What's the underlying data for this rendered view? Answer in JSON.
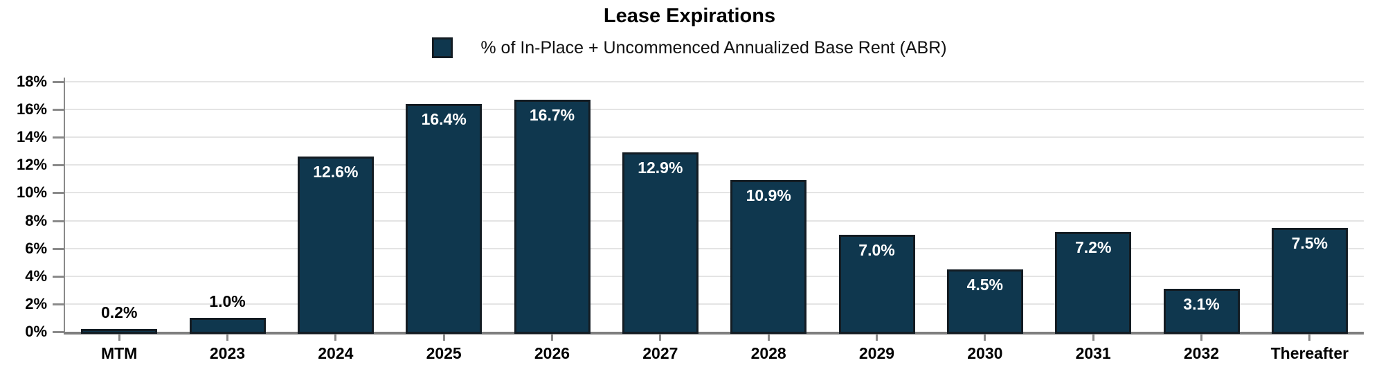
{
  "chart_data": {
    "type": "bar",
    "title": "Lease Expirations",
    "legend": {
      "label": "% of In-Place + Uncommenced Annualized Base Rent (ABR)",
      "position": "top"
    },
    "categories": [
      "MTM",
      "2023",
      "2024",
      "2025",
      "2026",
      "2027",
      "2028",
      "2029",
      "2030",
      "2031",
      "2032",
      "Thereafter"
    ],
    "values": [
      0.2,
      1.0,
      12.6,
      16.4,
      16.7,
      12.9,
      10.9,
      7.0,
      4.5,
      7.2,
      3.1,
      7.5
    ],
    "bar_labels": [
      "0.2%",
      "1.0%",
      "12.6%",
      "16.4%",
      "16.7%",
      "12.9%",
      "10.9%",
      "7.0%",
      "4.5%",
      "7.2%",
      "3.1%",
      "7.5%"
    ],
    "bar_label_inside": [
      false,
      false,
      true,
      true,
      true,
      true,
      true,
      true,
      true,
      true,
      true,
      true
    ],
    "xlabel": "",
    "ylabel": "",
    "ylim": [
      0,
      18
    ],
    "yticks": [
      {
        "value": 0,
        "label": "0%"
      },
      {
        "value": 2,
        "label": "2%"
      },
      {
        "value": 4,
        "label": "4%"
      },
      {
        "value": 6,
        "label": "6%"
      },
      {
        "value": 8,
        "label": "8%"
      },
      {
        "value": 10,
        "label": "10%"
      },
      {
        "value": 12,
        "label": "12%"
      },
      {
        "value": 14,
        "label": "14%"
      },
      {
        "value": 16,
        "label": "16%"
      },
      {
        "value": 18,
        "label": "18%"
      }
    ],
    "grid": true,
    "colors": {
      "bar_fill": "#0F374E",
      "bar_border": "#131C23",
      "label_inside": "#FFFFFF",
      "label_outside": "#000000",
      "gridline": "#E4E4E4",
      "axis": "#8A8A8A",
      "baseline": "#7F7F7F",
      "text": "#000000"
    }
  }
}
